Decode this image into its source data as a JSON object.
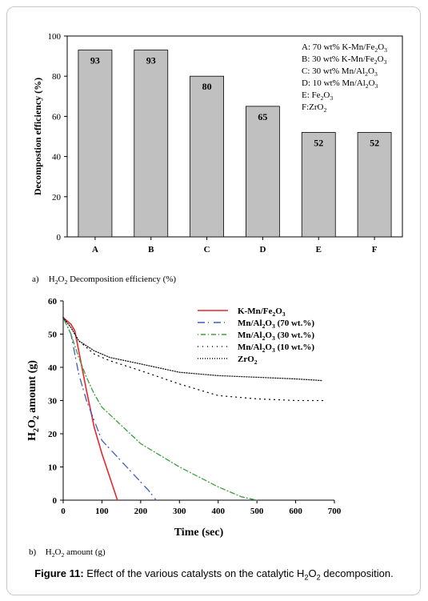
{
  "chart_data": [
    {
      "type": "bar",
      "categories": [
        "A",
        "B",
        "C",
        "D",
        "E",
        "F"
      ],
      "values": [
        93,
        93,
        80,
        65,
        52,
        52
      ],
      "data_labels": [
        "93",
        "93",
        "80",
        "65",
        "52",
        "52"
      ],
      "ylabel": "Decompostion efficiency (%)",
      "ylim": [
        0,
        100
      ],
      "yticks": [
        "0",
        "20",
        "40",
        "60",
        "80",
        "100"
      ],
      "bar_color": "#c0c0c0",
      "legend": [
        {
          "prefix": "A: 70 wt% K-Mn/Fe",
          "s1": "2",
          "mid": "O",
          "s2": "3",
          "tail": ""
        },
        {
          "prefix": "B: 30 wt% K-Mn/Fe",
          "s1": "2",
          "mid": "O",
          "s2": "3",
          "tail": ""
        },
        {
          "prefix": "C: 30 wt% Mn/Al",
          "s1": "2",
          "mid": "O",
          "s2": "3",
          "tail": ""
        },
        {
          "prefix": "D: 10 wt% Mn/Al",
          "s1": "2",
          "mid": "O",
          "s2": "3",
          "tail": ""
        },
        {
          "prefix": "E: Fe",
          "s1": "2",
          "mid": "O",
          "s2": "3",
          "tail": ""
        },
        {
          "prefix": "F:ZrO",
          "s1": "2",
          "mid": "",
          "s2": "",
          "tail": ""
        }
      ],
      "legend_placement": "top-right"
    },
    {
      "type": "line",
      "xlabel": "Time (sec)",
      "ylabel_parts": {
        "a": "H",
        "s1": "2",
        "b": "O",
        "s2": "2",
        "c": " amount (g)"
      },
      "xlim": [
        0,
        700
      ],
      "ylim": [
        0,
        60
      ],
      "xticks": [
        "0",
        "100",
        "200",
        "300",
        "400",
        "500",
        "600",
        "700"
      ],
      "yticks": [
        "0",
        "10",
        "20",
        "30",
        "40",
        "50",
        "60"
      ],
      "legend_placement": "top-right",
      "series": [
        {
          "legend": {
            "prefix": "K-Mn/Fe",
            "s1": "2",
            "mid": "O",
            "s2": "3",
            "tail": ""
          },
          "color": "#e8262b",
          "dash": "",
          "points": [
            [
              0,
              55
            ],
            [
              20,
              53
            ],
            [
              30,
              51
            ],
            [
              40,
              45
            ],
            [
              60,
              33
            ],
            [
              80,
              22
            ],
            [
              100,
              14
            ],
            [
              120,
              7
            ],
            [
              140,
              0
            ]
          ]
        },
        {
          "legend": {
            "prefix": "Mn/Al",
            "s1": "2",
            "mid": "O",
            "s2": "3",
            "tail": " (70 wt.%)"
          },
          "color": "#3d5bbf",
          "dash": "9 4 1 6",
          "points": [
            [
              0,
              55
            ],
            [
              20,
              50
            ],
            [
              40,
              38
            ],
            [
              60,
              30
            ],
            [
              80,
              24
            ],
            [
              100,
              18
            ],
            [
              220,
              3
            ],
            [
              240,
              0
            ]
          ]
        },
        {
          "legend": {
            "prefix": "Mn/Al",
            "s1": "2",
            "mid": "O",
            "s2": "3",
            "tail": " (30 wt.%)"
          },
          "color": "#3aa03a",
          "dash": "1 3 6 3",
          "points": [
            [
              0,
              55
            ],
            [
              20,
              50
            ],
            [
              40,
              43
            ],
            [
              60,
              37
            ],
            [
              80,
              32
            ],
            [
              100,
              28
            ],
            [
              200,
              17
            ],
            [
              300,
              10
            ],
            [
              400,
              4
            ],
            [
              460,
              1
            ],
            [
              500,
              0
            ]
          ]
        },
        {
          "legend": {
            "prefix": "Mn/Al",
            "s1": "2",
            "mid": "O",
            "s2": "3",
            "tail": " (10 wt.%)"
          },
          "color": "#111111",
          "dash": "1 5",
          "points": [
            [
              0,
              55
            ],
            [
              20,
              52
            ],
            [
              40,
              48
            ],
            [
              80,
              44
            ],
            [
              120,
              42
            ],
            [
              200,
              39
            ],
            [
              300,
              35
            ],
            [
              400,
              31.5
            ],
            [
              500,
              30.5
            ],
            [
              600,
              30
            ],
            [
              670,
              30
            ]
          ]
        },
        {
          "legend": {
            "prefix": "ZrO",
            "s1": "2",
            "mid": "",
            "s2": "",
            "tail": ""
          },
          "color": "#111111",
          "dash": "1 2",
          "points": [
            [
              0,
              55
            ],
            [
              20,
              52
            ],
            [
              40,
              48
            ],
            [
              80,
              45
            ],
            [
              120,
              43
            ],
            [
              200,
              41
            ],
            [
              300,
              38.5
            ],
            [
              400,
              37.5
            ],
            [
              500,
              37
            ],
            [
              600,
              36.5
            ],
            [
              670,
              36
            ]
          ]
        }
      ]
    }
  ],
  "captions": {
    "a_label": "a)",
    "a_text": {
      "a": "H",
      "s1": "2",
      "b": "O",
      "s2": "2",
      "c": " Decomposition efficiency (%)"
    },
    "b_label": "b)",
    "b_text": {
      "a": "H",
      "s1": "2",
      "b": "O",
      "s2": "2",
      "c": " amount (g)"
    },
    "figure_label": "Figure 11:",
    "figure_text": {
      "a": " Effect of the various catalysts on the catalytic H",
      "s1": "2",
      "b": "O",
      "s2": "2",
      "c": " decomposition."
    }
  }
}
